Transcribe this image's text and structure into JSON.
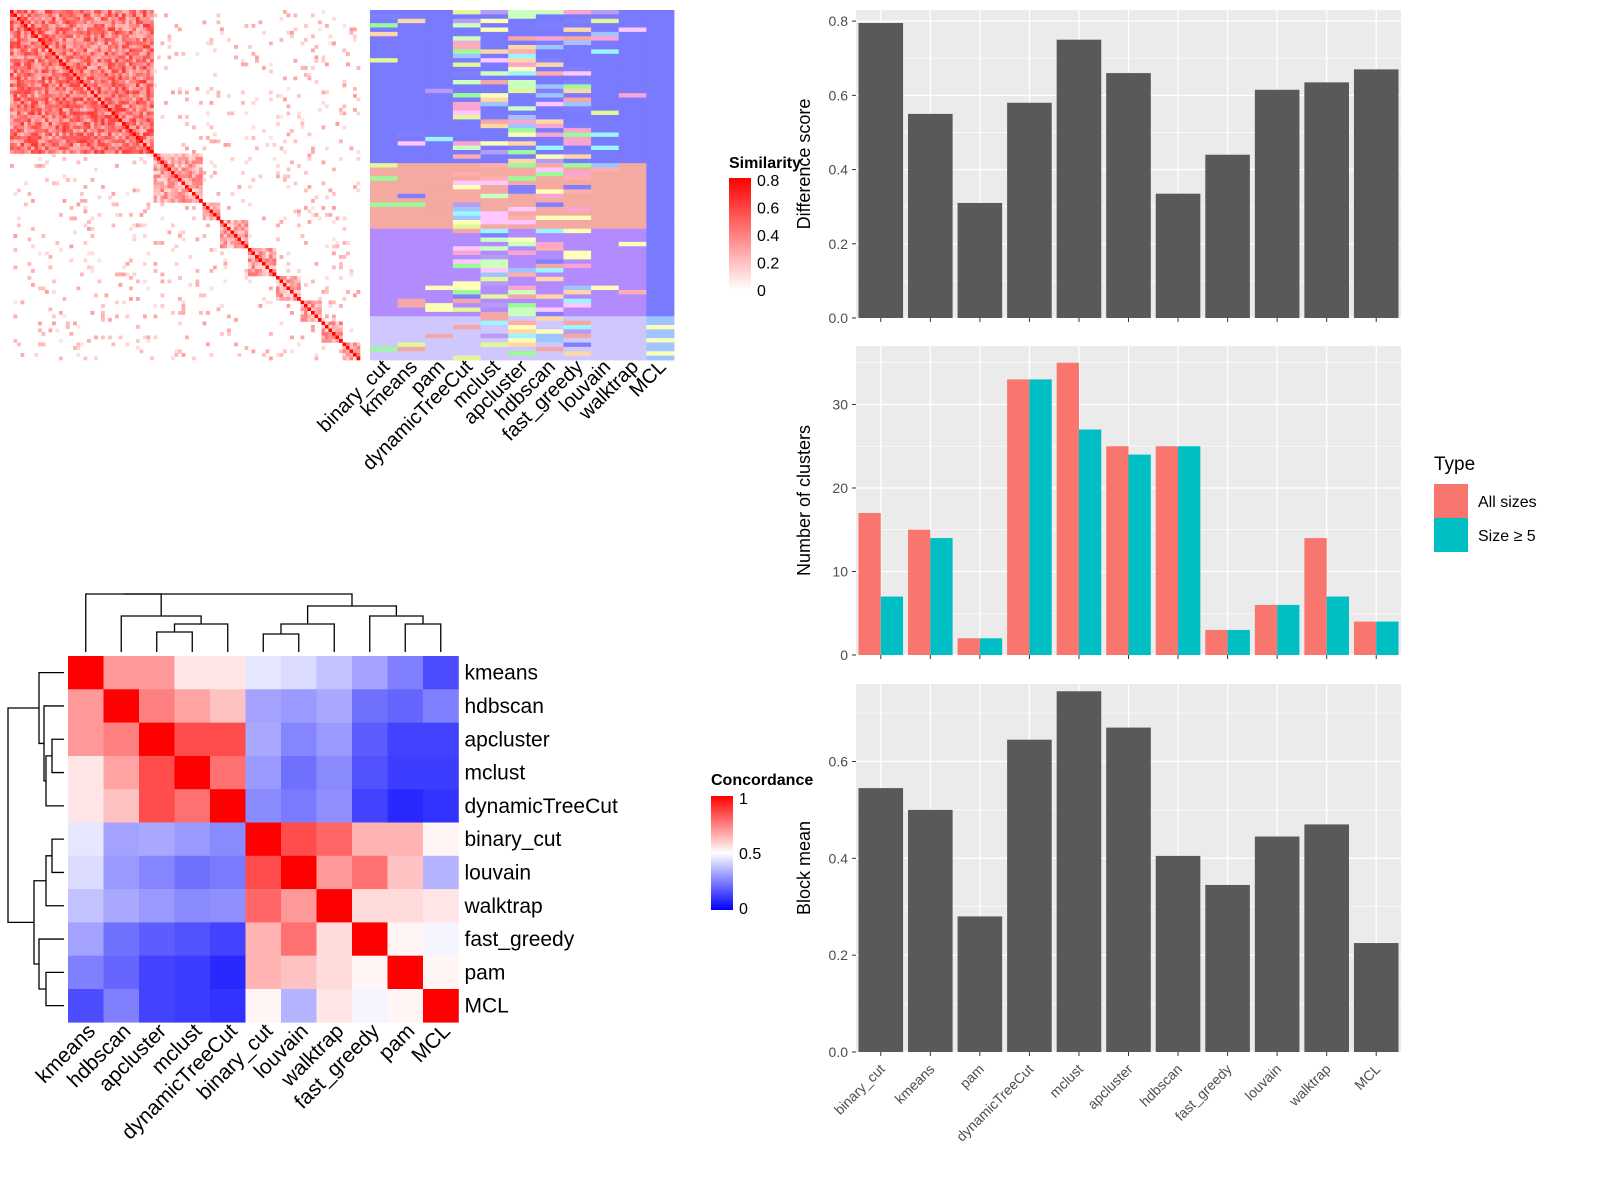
{
  "chart_data": [
    {
      "type": "heatmap",
      "id": "similarity",
      "legend_title": "Similarity",
      "legend_ticks": [
        "0.8",
        "0.6",
        "0.4",
        "0.2",
        "0"
      ],
      "method_labels": [
        "binary_cut",
        "kmeans",
        "pam",
        "dynamicTreeCut",
        "mclust",
        "apcluster",
        "hdbscan",
        "fast_greedy",
        "louvain",
        "walktrap",
        "MCL"
      ]
    },
    {
      "type": "heatmap",
      "id": "concordance",
      "legend_title": "Concordance",
      "legend_ticks": [
        "1",
        "0.5",
        "0"
      ],
      "row_labels": [
        "kmeans",
        "hdbscan",
        "apcluster",
        "mclust",
        "dynamicTreeCut",
        "binary_cut",
        "louvain",
        "walktrap",
        "fast_greedy",
        "pam",
        "MCL"
      ],
      "col_labels": [
        "kmeans",
        "hdbscan",
        "apcluster",
        "mclust",
        "dynamicTreeCut",
        "binary_cut",
        "louvain",
        "walktrap",
        "fast_greedy",
        "pam",
        "MCL"
      ],
      "values": [
        [
          1.0,
          0.7,
          0.7,
          0.55,
          0.55,
          0.45,
          0.43,
          0.38,
          0.32,
          0.25,
          0.15
        ],
        [
          0.7,
          1.0,
          0.75,
          0.68,
          0.62,
          0.32,
          0.3,
          0.33,
          0.22,
          0.2,
          0.25
        ],
        [
          0.7,
          0.75,
          1.0,
          0.85,
          0.85,
          0.33,
          0.26,
          0.3,
          0.18,
          0.13,
          0.13
        ],
        [
          0.55,
          0.68,
          0.85,
          1.0,
          0.78,
          0.3,
          0.22,
          0.27,
          0.16,
          0.12,
          0.12
        ],
        [
          0.55,
          0.62,
          0.85,
          0.78,
          1.0,
          0.27,
          0.24,
          0.28,
          0.13,
          0.08,
          0.1
        ],
        [
          0.45,
          0.32,
          0.33,
          0.3,
          0.27,
          1.0,
          0.85,
          0.8,
          0.65,
          0.65,
          0.52
        ],
        [
          0.43,
          0.3,
          0.26,
          0.22,
          0.24,
          0.85,
          1.0,
          0.7,
          0.78,
          0.62,
          0.35
        ],
        [
          0.38,
          0.33,
          0.3,
          0.27,
          0.28,
          0.8,
          0.7,
          1.0,
          0.57,
          0.57,
          0.55
        ],
        [
          0.32,
          0.22,
          0.18,
          0.16,
          0.13,
          0.65,
          0.78,
          0.57,
          1.0,
          0.52,
          0.48
        ],
        [
          0.25,
          0.2,
          0.13,
          0.12,
          0.08,
          0.65,
          0.62,
          0.57,
          0.52,
          1.0,
          0.52
        ],
        [
          0.15,
          0.25,
          0.13,
          0.12,
          0.1,
          0.52,
          0.35,
          0.55,
          0.48,
          0.52,
          1.0
        ]
      ]
    },
    {
      "type": "bar",
      "id": "difference",
      "ylabel": "Difference score",
      "ylim": [
        0,
        0.83
      ],
      "yticks": [
        "0.0",
        "0.2",
        "0.4",
        "0.6",
        "0.8"
      ],
      "categories": [
        "binary_cut",
        "kmeans",
        "pam",
        "dynamicTreeCut",
        "mclust",
        "apcluster",
        "hdbscan",
        "fast_greedy",
        "louvain",
        "walktrap",
        "MCL"
      ],
      "values": [
        0.795,
        0.55,
        0.31,
        0.58,
        0.75,
        0.66,
        0.335,
        0.44,
        0.615,
        0.635,
        0.67
      ]
    },
    {
      "type": "bar",
      "id": "clusters",
      "ylabel": "Number of clusters",
      "ylim": [
        0,
        37
      ],
      "yticks": [
        "0",
        "10",
        "20",
        "30"
      ],
      "legend_title": "Type",
      "categories": [
        "binary_cut",
        "kmeans",
        "pam",
        "dynamicTreeCut",
        "mclust",
        "apcluster",
        "hdbscan",
        "fast_greedy",
        "louvain",
        "walktrap",
        "MCL"
      ],
      "series": [
        {
          "name": "All sizes",
          "color": "#F8766D",
          "values": [
            17,
            15,
            2,
            33,
            35,
            25,
            25,
            3,
            6,
            14,
            4
          ]
        },
        {
          "name": "Size ≥ 5",
          "color": "#00BFC4",
          "values": [
            7,
            14,
            2,
            33,
            27,
            24,
            25,
            3,
            6,
            7,
            4
          ]
        }
      ]
    },
    {
      "type": "bar",
      "id": "blockmean",
      "ylabel": "Block mean",
      "ylim": [
        0,
        0.76
      ],
      "yticks": [
        "0.0",
        "0.2",
        "0.4",
        "0.6"
      ],
      "categories": [
        "binary_cut",
        "kmeans",
        "pam",
        "dynamicTreeCut",
        "mclust",
        "apcluster",
        "hdbscan",
        "fast_greedy",
        "louvain",
        "walktrap",
        "MCL"
      ],
      "values": [
        0.545,
        0.5,
        0.28,
        0.645,
        0.745,
        0.67,
        0.405,
        0.345,
        0.445,
        0.47,
        0.225
      ]
    }
  ]
}
